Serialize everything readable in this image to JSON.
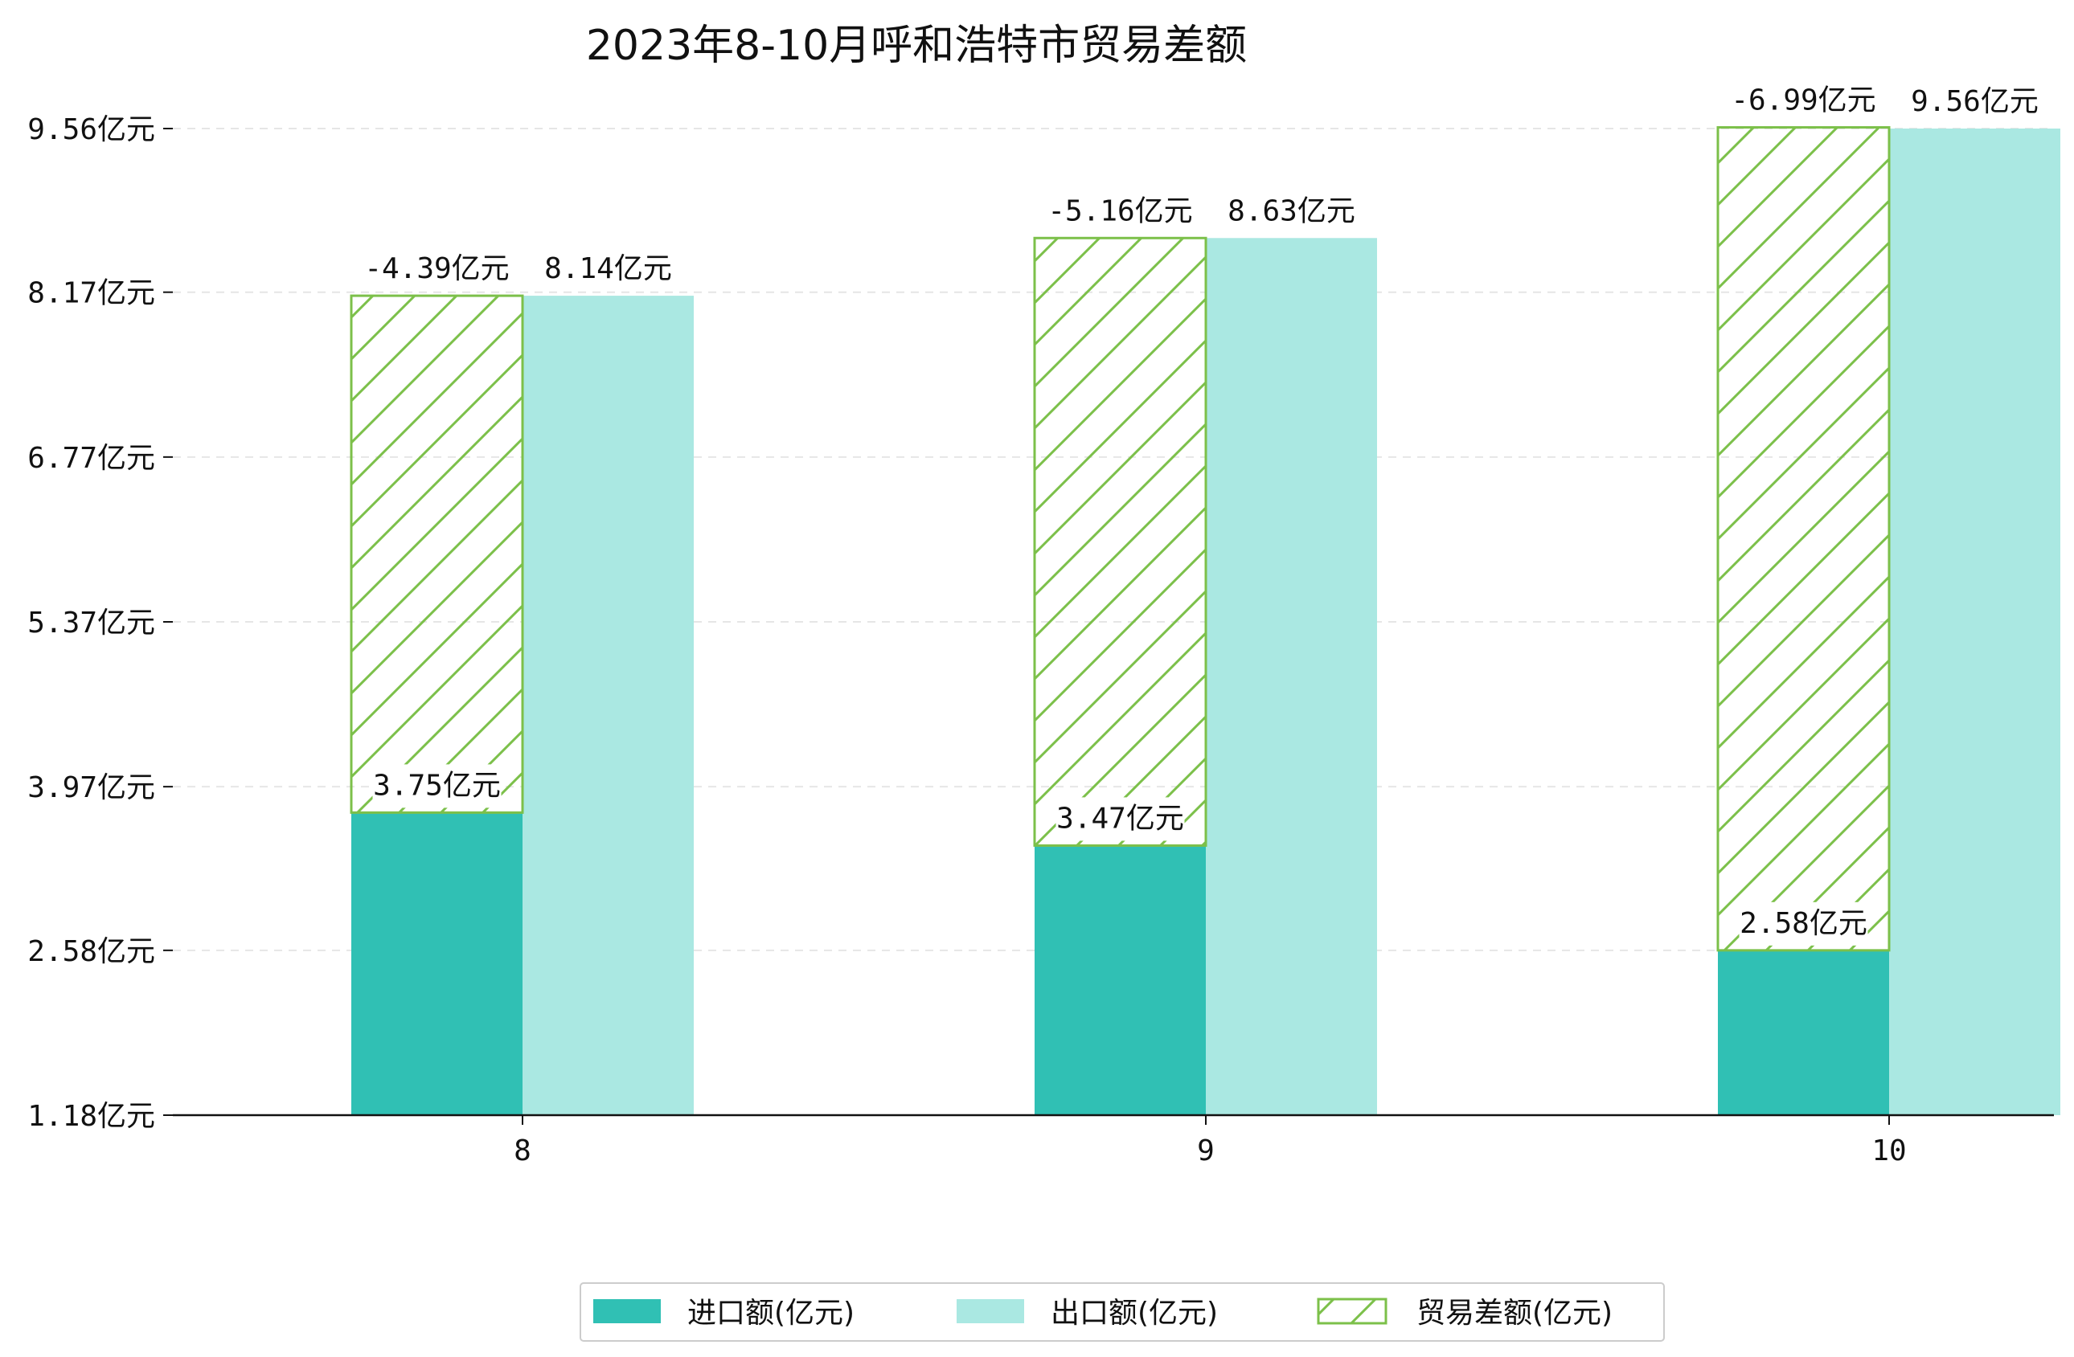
{
  "chart_data": {
    "type": "bar",
    "title": "2023年8-10月呼和浩特市贸易差额",
    "xlabel": "",
    "ylabel": "",
    "categories": [
      "8",
      "9",
      "10"
    ],
    "series": [
      {
        "name": "进口额(亿元)",
        "values": [
          3.75,
          3.47,
          2.58
        ],
        "labels": [
          "3.75亿元",
          "3.47亿元",
          "2.58亿元"
        ]
      },
      {
        "name": "出口额(亿元)",
        "values": [
          8.14,
          8.63,
          9.56
        ],
        "labels": [
          "8.14亿元",
          "8.63亿元",
          "9.56亿元"
        ]
      },
      {
        "name": "贸易差额(亿元)",
        "values": [
          -4.39,
          -5.16,
          -6.99
        ],
        "labels": [
          "-4.39亿元",
          "-5.16亿元",
          "-6.99亿元"
        ]
      }
    ],
    "yticks": [
      1.18,
      2.58,
      3.97,
      5.37,
      6.77,
      8.17,
      9.56
    ],
    "ytick_labels": [
      "1.18亿元",
      "2.58亿元",
      "3.97亿元",
      "5.37亿元",
      "6.77亿元",
      "8.17亿元",
      "9.56亿元"
    ],
    "ylim": [
      1.18,
      9.56
    ],
    "grid": true,
    "legend_position": "bottom-center",
    "colors": {
      "import": "#30c0b4",
      "export": "#aae8e2",
      "balance": "#7cc04a",
      "grid": "#e6e6e6"
    }
  }
}
